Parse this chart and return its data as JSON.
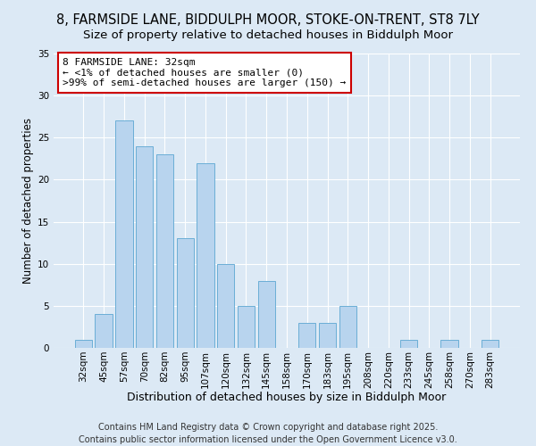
{
  "title": "8, FARMSIDE LANE, BIDDULPH MOOR, STOKE-ON-TRENT, ST8 7LY",
  "subtitle": "Size of property relative to detached houses in Biddulph Moor",
  "xlabel": "Distribution of detached houses by size in Biddulph Moor",
  "ylabel": "Number of detached properties",
  "categories": [
    "32sqm",
    "45sqm",
    "57sqm",
    "70sqm",
    "82sqm",
    "95sqm",
    "107sqm",
    "120sqm",
    "132sqm",
    "145sqm",
    "158sqm",
    "170sqm",
    "183sqm",
    "195sqm",
    "208sqm",
    "220sqm",
    "233sqm",
    "245sqm",
    "258sqm",
    "270sqm",
    "283sqm"
  ],
  "values": [
    1,
    4,
    27,
    24,
    23,
    13,
    22,
    10,
    5,
    8,
    0,
    3,
    3,
    5,
    0,
    0,
    1,
    0,
    1,
    0,
    1
  ],
  "bar_color": "#b8d4ee",
  "bar_edge_color": "#6baed6",
  "background_color": "#dce9f5",
  "grid_color": "#ffffff",
  "ylim": [
    0,
    35
  ],
  "yticks": [
    0,
    5,
    10,
    15,
    20,
    25,
    30,
    35
  ],
  "annotation_line1": "8 FARMSIDE LANE: 32sqm",
  "annotation_line2": "← <1% of detached houses are smaller (0)",
  "annotation_line3": ">99% of semi-detached houses are larger (150) →",
  "annotation_box_color": "#ffffff",
  "annotation_box_edge": "#cc0000",
  "footer_line1": "Contains HM Land Registry data © Crown copyright and database right 2025.",
  "footer_line2": "Contains public sector information licensed under the Open Government Licence v3.0.",
  "title_fontsize": 10.5,
  "subtitle_fontsize": 9.5,
  "xlabel_fontsize": 9,
  "ylabel_fontsize": 8.5,
  "tick_fontsize": 7.5,
  "annotation_fontsize": 8,
  "footer_fontsize": 7
}
